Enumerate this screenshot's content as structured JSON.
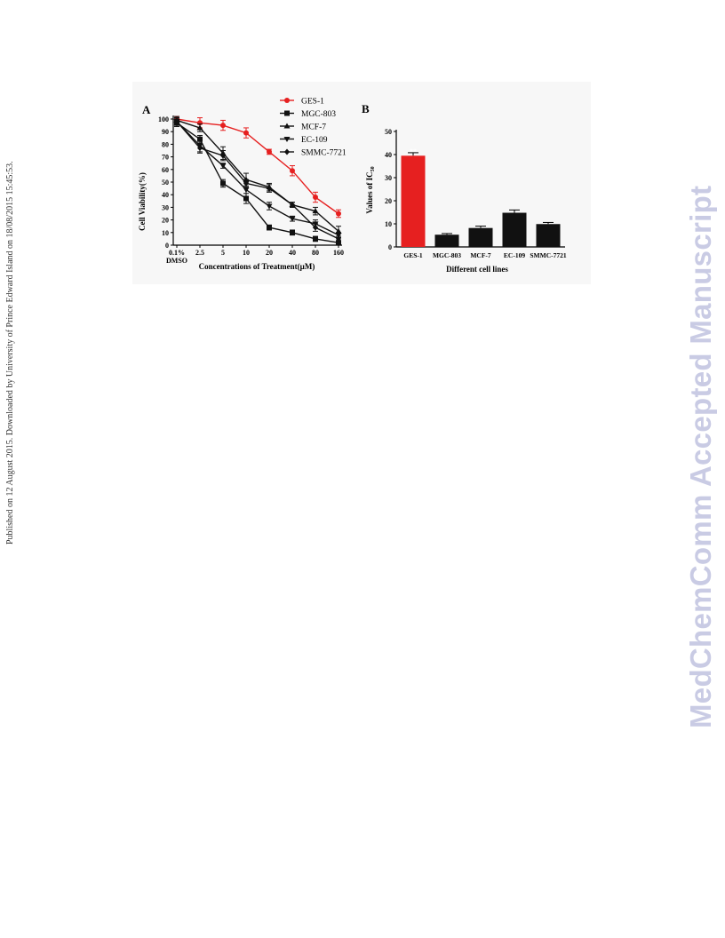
{
  "side_note": "Published on 12 August 2015. Downloaded by University of Prince Edward Island on 18/08/2015 15:45:53.",
  "watermark": "MedChemComm Accepted Manuscript",
  "colors": {
    "red": "#e62020",
    "black": "#111111",
    "background": "#f7f7f7"
  },
  "chart_data": [
    {
      "panel": "A",
      "type": "line",
      "xlabel": "Concentrations of Treatment(µM)",
      "ylabel": "Cell Viability(%)",
      "x_categories": [
        "0.1%\nDMSO",
        "2.5",
        "5",
        "10",
        "20",
        "40",
        "80",
        "160"
      ],
      "yticks": [
        0,
        10,
        20,
        30,
        40,
        50,
        60,
        70,
        80,
        90,
        100
      ],
      "ylim": [
        0,
        100
      ],
      "legend_position": "top-right",
      "series": [
        {
          "name": "GES-1",
          "marker": "circle",
          "color": "#e62020",
          "values": [
            100,
            97,
            95,
            89,
            74,
            59,
            38,
            25
          ],
          "errors": [
            2,
            4,
            4,
            4,
            2,
            4,
            4,
            3
          ]
        },
        {
          "name": "MGC-803",
          "marker": "square",
          "color": "#111111",
          "values": [
            97,
            84,
            49,
            37,
            14,
            10,
            5,
            2
          ],
          "errors": [
            3,
            3,
            3,
            4,
            2,
            2,
            2,
            1
          ]
        },
        {
          "name": "MCF-7",
          "marker": "triangle-up",
          "color": "#111111",
          "values": [
            99,
            93,
            73,
            52,
            46,
            32,
            27,
            11
          ],
          "errors": [
            3,
            3,
            5,
            5,
            3,
            2,
            3,
            4
          ]
        },
        {
          "name": "EC-109",
          "marker": "triangle-down",
          "color": "#111111",
          "values": [
            98,
            79,
            63,
            44,
            31,
            21,
            17,
            8
          ],
          "errors": [
            3,
            5,
            2,
            6,
            3,
            2,
            3,
            2
          ]
        },
        {
          "name": "SMMC-7721",
          "marker": "diamond",
          "color": "#111111",
          "values": [
            98,
            77,
            71,
            49,
            45,
            32,
            14,
            5
          ],
          "errors": [
            3,
            4,
            4,
            3,
            3,
            2,
            3,
            2
          ]
        }
      ]
    },
    {
      "panel": "B",
      "type": "bar",
      "xlabel": "Different cell lines",
      "ylabel_main": "Values of IC",
      "ylabel_sub": "50",
      "categories": [
        "GES-1",
        "MGC-803",
        "MCF-7",
        "EC-109",
        "SMMC-7721"
      ],
      "values": [
        39.5,
        5.3,
        8.2,
        14.8,
        9.9
      ],
      "errors": [
        1.3,
        0.5,
        0.8,
        1.2,
        0.7
      ],
      "colors": [
        "#e62020",
        "#111111",
        "#111111",
        "#111111",
        "#111111"
      ],
      "annotation": "**",
      "yticks": [
        0,
        10,
        20,
        30,
        40,
        50
      ],
      "ylim": [
        0,
        50
      ]
    }
  ]
}
